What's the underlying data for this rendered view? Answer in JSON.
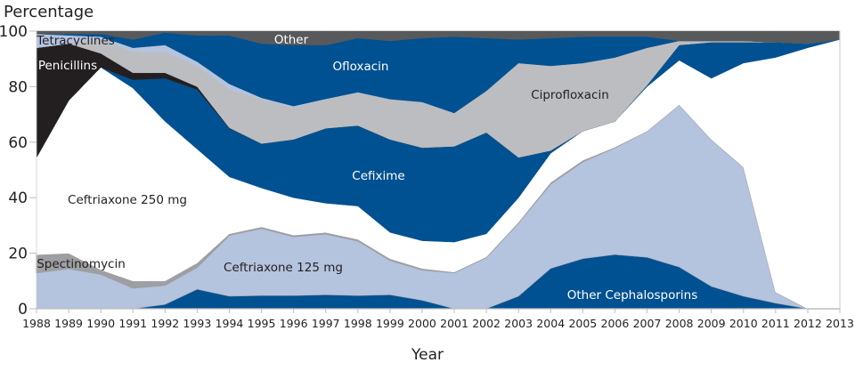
{
  "chart_data": {
    "type": "area",
    "stacked": true,
    "ylabel": "Percentage",
    "xlabel": "Year",
    "ylim": [
      0,
      100
    ],
    "yticks": [
      0,
      20,
      40,
      60,
      80,
      100
    ],
    "grid": false,
    "x": [
      1988,
      1989,
      1990,
      1991,
      1992,
      1993,
      1994,
      1995,
      1996,
      1997,
      1998,
      1999,
      2000,
      2001,
      2002,
      2003,
      2004,
      2005,
      2006,
      2007,
      2008,
      2009,
      2010,
      2011,
      2012,
      2013
    ],
    "series": [
      {
        "name": "Other Cephalosporins",
        "color": "#005191",
        "label_color": "#ffffff",
        "values": [
          0,
          0,
          0,
          0,
          1.5,
          7,
          4.5,
          4.7,
          4.7,
          5,
          4.7,
          5,
          3,
          0,
          0,
          4.5,
          14.5,
          18,
          19.5,
          18.5,
          15,
          8,
          4.5,
          2,
          0,
          0
        ]
      },
      {
        "name": "Ceftriaxone 125 mg",
        "color": "#b4c3de",
        "label_color": "#231f20",
        "values": [
          13,
          14.5,
          12.5,
          7.5,
          7,
          8,
          22,
          24.3,
          21.3,
          22,
          19.8,
          12.5,
          11,
          13,
          18.5,
          26.5,
          30.5,
          35,
          38.5,
          45.5,
          58.5,
          53,
          46.5,
          4,
          0,
          0
        ]
      },
      {
        "name": "Spectinomycin",
        "color": "#9d9fa2",
        "label_color": "#231f20",
        "values": [
          6.5,
          5.5,
          1.5,
          2.5,
          1.5,
          1.5,
          0.5,
          0.5,
          0.5,
          0.5,
          0.5,
          0.5,
          0.5,
          0.2,
          0.2,
          0.2,
          0.5,
          0.5,
          0.2,
          0,
          0,
          0,
          0,
          0,
          0,
          0
        ]
      },
      {
        "name": "Ceftriaxone 250 mg",
        "color": "#ffffff",
        "label_color": "#231f20",
        "values": [
          35,
          55,
          73,
          69.5,
          57.5,
          41,
          20.5,
          14,
          13.5,
          10.5,
          12,
          9.5,
          10,
          10.8,
          8.3,
          8.8,
          10.5,
          10.5,
          9.3,
          16,
          16,
          22,
          37.5,
          84.5,
          94,
          97
        ]
      },
      {
        "name": "Cefixime",
        "color": "#005191",
        "label_color": "#ffffff",
        "values": [
          0,
          0,
          0,
          3,
          15.5,
          21.5,
          17.5,
          16,
          21,
          27,
          29,
          33.5,
          33.5,
          34.5,
          36.5,
          14.5,
          1,
          0,
          0,
          0.5,
          5.5,
          13,
          7.5,
          5.5,
          1.5,
          0
        ]
      },
      {
        "name": "Penicillins",
        "color": "#231f20",
        "label_color": "#ffffff",
        "values": [
          39.5,
          20.5,
          5,
          2.5,
          2,
          1,
          0.2,
          0,
          0,
          0,
          0,
          0,
          0,
          0,
          0,
          0,
          0,
          0,
          0,
          0,
          0,
          0,
          0,
          0,
          0,
          0
        ]
      },
      {
        "name": "Ciprofloxacin",
        "color": "#bcbdc0",
        "label_color": "#231f20",
        "values": [
          0,
          0,
          5,
          7.5,
          7.5,
          7.5,
          13.8,
          16,
          11.5,
          10.5,
          12,
          14.5,
          16.5,
          12,
          15,
          34,
          30.5,
          24.5,
          23,
          13.5,
          1.5,
          0.5,
          0.5,
          0,
          0,
          0
        ]
      },
      {
        "name": "Tetracyclines",
        "color": "#b4c3de",
        "label_color": "#231f20",
        "values": [
          5,
          3,
          1,
          1.5,
          2.5,
          1.5,
          2,
          0.5,
          0.5,
          0.1,
          0,
          0,
          0,
          0,
          0,
          0,
          0,
          0,
          0,
          0,
          0,
          0,
          0,
          0,
          0,
          0
        ]
      },
      {
        "name": "Ofloxacin",
        "color": "#005191",
        "label_color": "#ffffff",
        "values": [
          0,
          0.5,
          1,
          3,
          4.5,
          9.5,
          17.5,
          19.5,
          22,
          19.4,
          19.5,
          21,
          23,
          27.5,
          19,
          8.5,
          10,
          9.5,
          7.5,
          4,
          0,
          0,
          0,
          0,
          0,
          0
        ]
      },
      {
        "name": "Other",
        "color": "#58595b",
        "label_color": "#ffffff",
        "values": [
          1,
          1,
          1,
          3,
          0.5,
          1.5,
          1.5,
          4.5,
          5,
          5,
          2.5,
          3.5,
          2.5,
          2,
          2.5,
          3,
          2.5,
          2,
          2,
          2,
          3.5,
          3.5,
          3.5,
          4,
          4.5,
          3
        ]
      }
    ]
  }
}
